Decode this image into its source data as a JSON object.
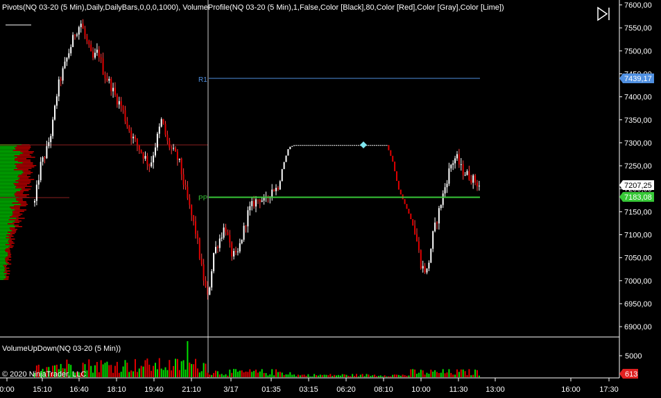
{
  "indicator_label": "Pivots(NQ 03-20 (5 Min),Daily,DailyBars,0,0,0,1000), VolumeProfile(NQ 03-20 (5 Min),1,False,Color [Black],80,Color [Red],Color [Gray],Color [Lime])",
  "volume_panel_label": "VolumeUpDown(NQ 03-20 (5 Min))",
  "copyright": "© 2020 NinjaTrader, LLC",
  "price_axis_labels": [
    "7600,00",
    "7550,00",
    "7500,00",
    "7450,00",
    "7400,00",
    "7350,00",
    "7300,00",
    "7250,00",
    "7200,00",
    "7150,00",
    "7100,00",
    "7050,00",
    "7000,00",
    "6950,00",
    "6900,00"
  ],
  "time_axis_labels": [
    "0:00",
    "15:10",
    "16:40",
    "18:10",
    "19:40",
    "21:10",
    "3/17",
    "01:35",
    "03:15",
    "06:20",
    "08:10",
    "10:00",
    "11:30",
    "13:00",
    "16:00",
    "17:30"
  ],
  "pivot_labels": {
    "r1": "R1",
    "pp": "PP"
  },
  "price_tags": {
    "r1": {
      "text": "7439,17",
      "color": "#4f8fe0"
    },
    "last": {
      "text": "7207,25",
      "color": "#ffffff"
    },
    "pp": {
      "text": "7183,08",
      "color": "#37c837"
    }
  },
  "volume_axis_label": "5000",
  "volume_tag": {
    "text": "613",
    "color": "#e02020"
  },
  "maximize_icon": "play-end-icon",
  "colors": {
    "up": "#00e000",
    "down": "#e00000",
    "r1": "#4f8fe0",
    "pp": "#37c837",
    "crosshair": "#ffffff"
  },
  "chart_data": {
    "type": "candlestick",
    "price_ylim": [
      6890,
      7605
    ],
    "r1": 7439.17,
    "pp": 7183.08,
    "last_price": 7207.25,
    "volume_last": 613,
    "price_path": [
      7170,
      7250,
      7280,
      7330,
      7420,
      7460,
      7500,
      7540,
      7560,
      7520,
      7480,
      7500,
      7450,
      7430,
      7400,
      7380,
      7340,
      7310,
      7290,
      7270,
      7250,
      7300,
      7350,
      7300,
      7280,
      7260,
      7200,
      7150,
      7100,
      7020,
      6960,
      7060,
      7090,
      7120,
      7060,
      7050,
      7100,
      7150,
      7170,
      7180,
      7170,
      7200,
      7200,
      7250,
      7290,
      7295,
      7295,
      7295,
      7295,
      7295,
      7295,
      7295,
      7295,
      7295,
      7295,
      7295,
      7295,
      7295,
      7295,
      7295,
      7295,
      7295,
      7260,
      7200,
      7170,
      7140,
      7100,
      7030,
      7020,
      7100,
      7150,
      7200,
      7250,
      7270,
      7240,
      7230,
      7220,
      7207.25
    ]
  }
}
